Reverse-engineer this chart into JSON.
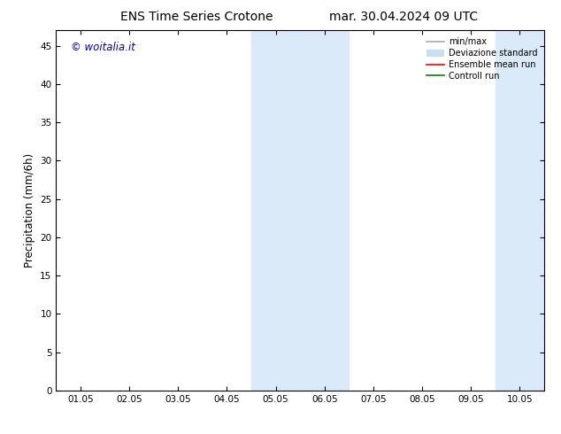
{
  "title_left": "ENS Time Series Crotone",
  "title_right": "mar. 30.04.2024 09 UTC",
  "ylabel": "Precipitation (mm/6h)",
  "xlabel": "",
  "copyright_text": "© woitalia.it",
  "copyright_color": "#0000cc",
  "x_tick_labels": [
    "01.05",
    "02.05",
    "03.05",
    "04.05",
    "05.05",
    "06.05",
    "07.05",
    "08.05",
    "09.05",
    "10.05"
  ],
  "x_tick_positions": [
    0,
    1,
    2,
    3,
    4,
    5,
    6,
    7,
    8,
    9
  ],
  "ylim": [
    0,
    47
  ],
  "yticks": [
    0,
    5,
    10,
    15,
    20,
    25,
    30,
    35,
    40,
    45
  ],
  "xlim": [
    -0.5,
    9.5
  ],
  "shaded_regions": [
    {
      "x_start": 3.5,
      "x_end": 5.5,
      "color": "#daeaf8"
    },
    {
      "x_start": 8.5,
      "x_end": 9.5,
      "color": "#daeaf8"
    }
  ],
  "legend_entries": [
    {
      "label": "min/max",
      "color": "#aaaaaa",
      "linewidth": 1.2,
      "type": "line"
    },
    {
      "label": "Deviazione standard",
      "color": "#c8dff0",
      "linewidth": 6,
      "type": "band"
    },
    {
      "label": "Ensemble mean run",
      "color": "#ff0000",
      "linewidth": 1.2,
      "type": "line"
    },
    {
      "label": "Controll run",
      "color": "#008800",
      "linewidth": 1.2,
      "type": "line"
    }
  ],
  "bg_color": "#ffffff",
  "plot_bg_color": "#ffffff",
  "tick_fontsize": 7.5,
  "label_fontsize": 8.5,
  "title_fontsize": 10
}
